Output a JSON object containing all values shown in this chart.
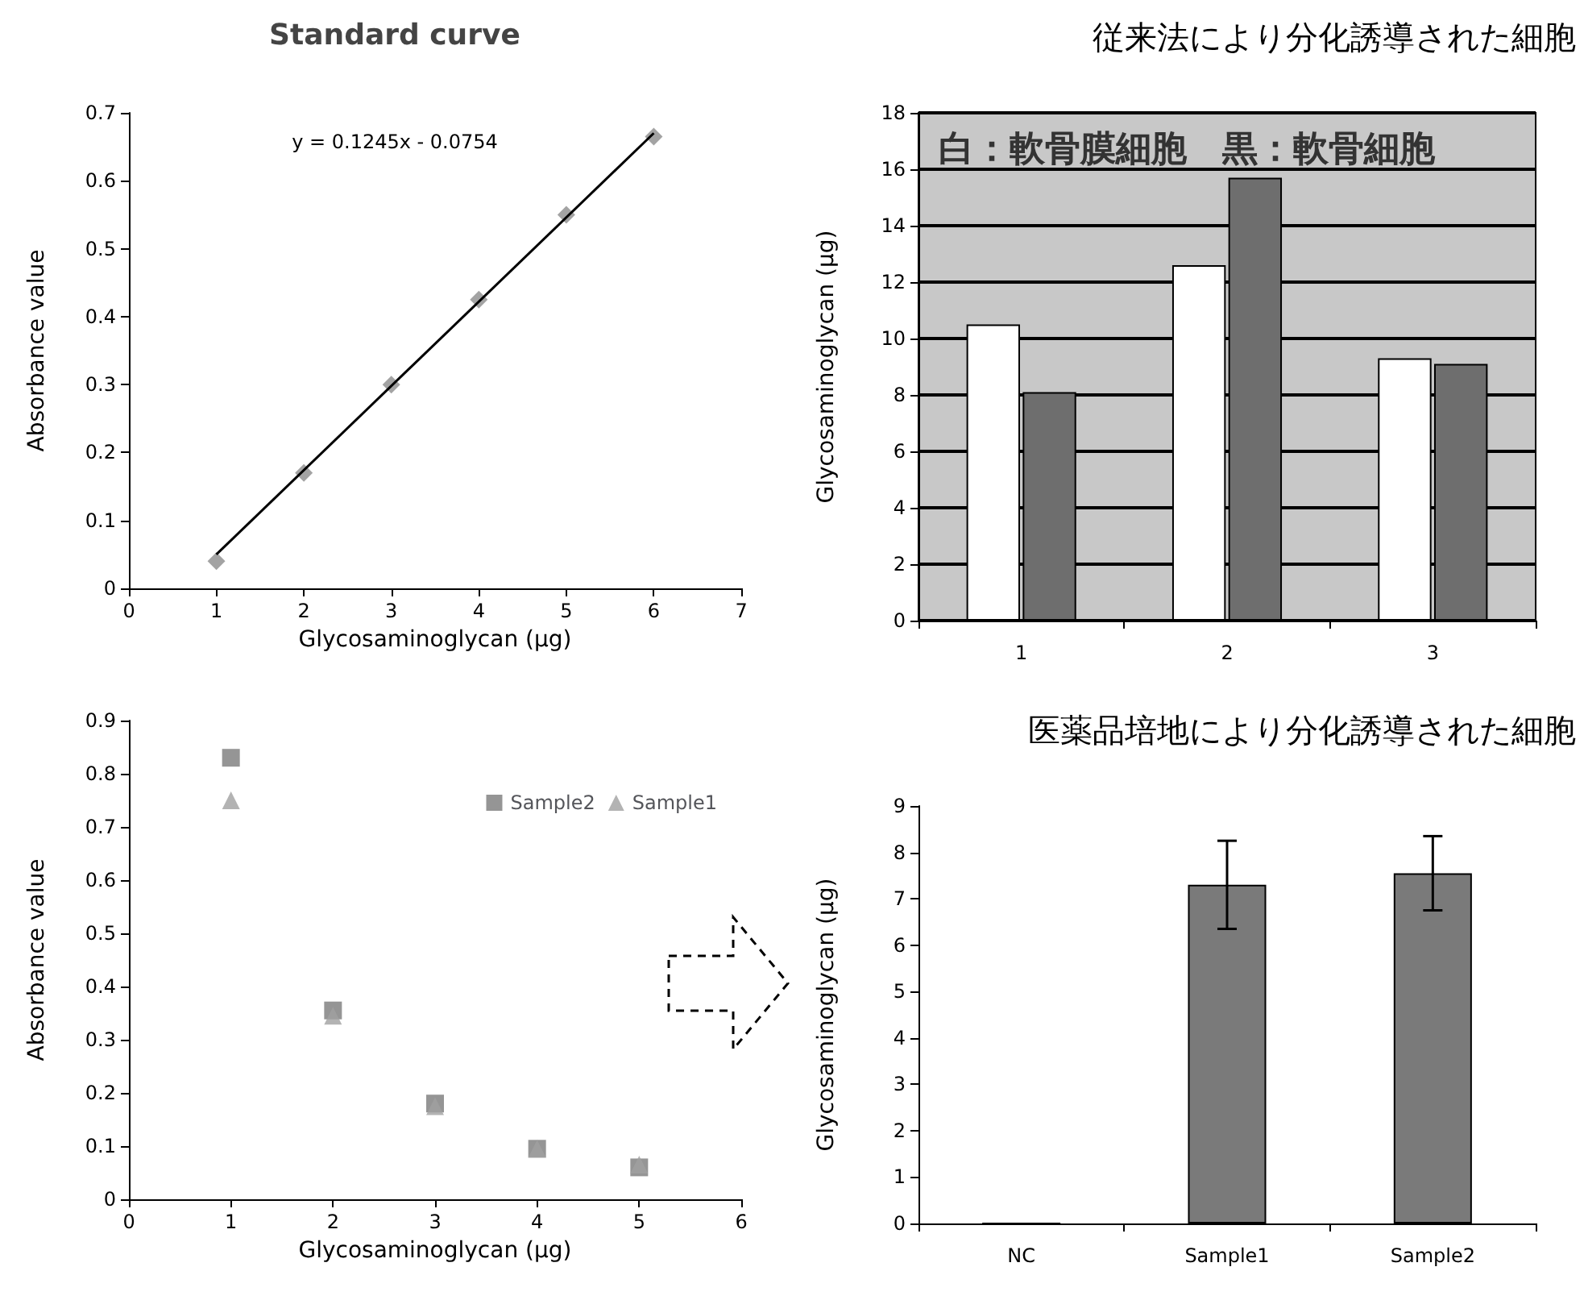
{
  "chart_data": [
    {
      "type": "scatter",
      "title": "Standard curve",
      "xlabel": "Glycosaminoglycan (µg)",
      "ylabel": "Absorbance value",
      "x": [
        1,
        2,
        3,
        4,
        5,
        6
      ],
      "xlim": [
        0,
        7
      ],
      "xticks": [
        0,
        1,
        2,
        3,
        4,
        5,
        6,
        7
      ],
      "ylim": [
        0,
        0.7
      ],
      "yticks": [
        0,
        0.1,
        0.2,
        0.3,
        0.4,
        0.5,
        0.6,
        0.7
      ],
      "annotations": [
        "y = 0.1245x - 0.0754"
      ],
      "series": [
        {
          "color": "#8c8c8c",
          "marker": "diamond",
          "values": [
            0.04,
            0.17,
            0.3,
            0.425,
            0.55,
            0.665
          ]
        },
        {
          "type": "line",
          "color": "#000000",
          "marker": "none",
          "x": [
            1,
            6
          ],
          "values": [
            0.05,
            0.67
          ]
        }
      ]
    },
    {
      "type": "bar",
      "title": "従来法により分化誘導された細胞",
      "ylabel": "Glycosaminoglycan (µg)",
      "categories": [
        "1",
        "2",
        "3"
      ],
      "ylim": [
        0,
        18
      ],
      "yticks": [
        0,
        2,
        4,
        6,
        8,
        10,
        12,
        14,
        16,
        18
      ],
      "grid": "y",
      "annotations": [
        "白：軟骨膜細胞　黒：軟骨細胞"
      ],
      "series": [
        {
          "color": "#ffffff",
          "values": [
            10.5,
            12.6,
            9.3
          ]
        },
        {
          "color": "#6e6e6e",
          "values": [
            8.1,
            15.7,
            9.1
          ]
        }
      ]
    },
    {
      "type": "scatter",
      "xlabel": "Glycosaminoglycan (µg)",
      "ylabel": "Absorbance value",
      "x": [
        1,
        2,
        3,
        4,
        5
      ],
      "xlim": [
        0,
        6
      ],
      "xticks": [
        0,
        1,
        2,
        3,
        4,
        5,
        6
      ],
      "ylim": [
        0,
        0.9
      ],
      "yticks": [
        0,
        0.1,
        0.2,
        0.3,
        0.4,
        0.5,
        0.6,
        0.7,
        0.8,
        0.9
      ],
      "legend": "top right",
      "series": [
        {
          "name": "Sample2",
          "color": "#7a7a7a",
          "marker": "square",
          "values": [
            0.83,
            0.355,
            0.18,
            0.095,
            0.06
          ]
        },
        {
          "name": "Sample1",
          "color": "#a0a0a0",
          "marker": "triangle",
          "values": [
            0.75,
            0.345,
            0.175,
            0.095,
            0.065
          ]
        }
      ]
    },
    {
      "type": "bar",
      "title": "医薬品培地により分化誘導された細胞",
      "ylabel": "Glycosaminoglycan (µg)",
      "categories": [
        "NC",
        "Sample1",
        "Sample2"
      ],
      "ylim": [
        0,
        9
      ],
      "yticks": [
        0,
        1,
        2,
        3,
        4,
        5,
        6,
        7,
        8,
        9
      ],
      "color": "#7a7a7a",
      "values": [
        0,
        7.3,
        7.55
      ],
      "errors": [
        null,
        0.95,
        0.8
      ]
    }
  ]
}
